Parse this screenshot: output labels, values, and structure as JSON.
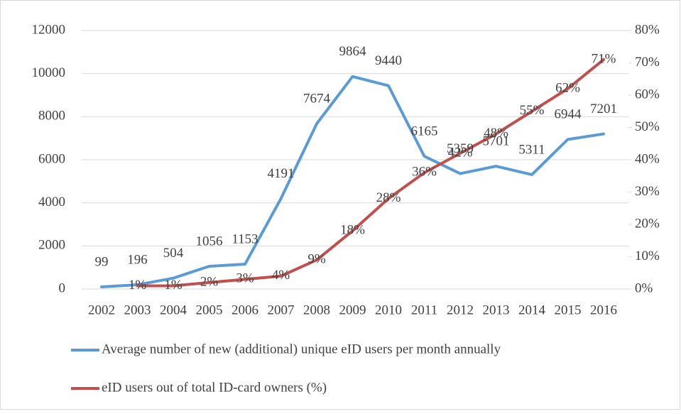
{
  "chart_data": {
    "type": "line",
    "categories": [
      "2002",
      "2003",
      "2004",
      "2005",
      "2006",
      "2007",
      "2008",
      "2009",
      "2010",
      "2011",
      "2012",
      "2013",
      "2014",
      "2015",
      "2016"
    ],
    "series": [
      {
        "name": "Average number of new (additional) unique eID users per month annually",
        "color": "#5b9bd5",
        "values": [
          99,
          196,
          504,
          1056,
          1153,
          4191,
          7674,
          9864,
          9440,
          6165,
          5359,
          5701,
          5311,
          6944,
          7201
        ]
      },
      {
        "name": "eID users out of total ID-card owners (%)",
        "color": "#c0504d",
        "axis": "y2",
        "values": [
          null,
          1,
          1,
          2,
          3,
          4,
          9,
          18,
          28,
          36,
          42,
          48,
          55,
          62,
          71
        ],
        "value_labels": [
          null,
          "1%",
          "1%",
          "2%",
          "3%",
          "4%",
          "9%",
          "18%",
          "28%",
          "36%",
          "42%",
          "48%",
          "55%",
          "62%",
          "71%"
        ]
      }
    ],
    "ylim": [
      0,
      12000
    ],
    "yticks": [
      0,
      2000,
      4000,
      6000,
      8000,
      10000,
      12000
    ],
    "y2lim": [
      0,
      80
    ],
    "y2ticks": [
      {
        "value": 0,
        "label": "0%"
      },
      {
        "value": 10,
        "label": "10%"
      },
      {
        "value": 20,
        "label": "20%"
      },
      {
        "value": 30,
        "label": "30%"
      },
      {
        "value": 40,
        "label": "40%"
      },
      {
        "value": 50,
        "label": "50%"
      },
      {
        "value": 60,
        "label": "60%"
      },
      {
        "value": 70,
        "label": "70%"
      },
      {
        "value": 80,
        "label": "80%"
      }
    ],
    "legend": "bottom"
  }
}
